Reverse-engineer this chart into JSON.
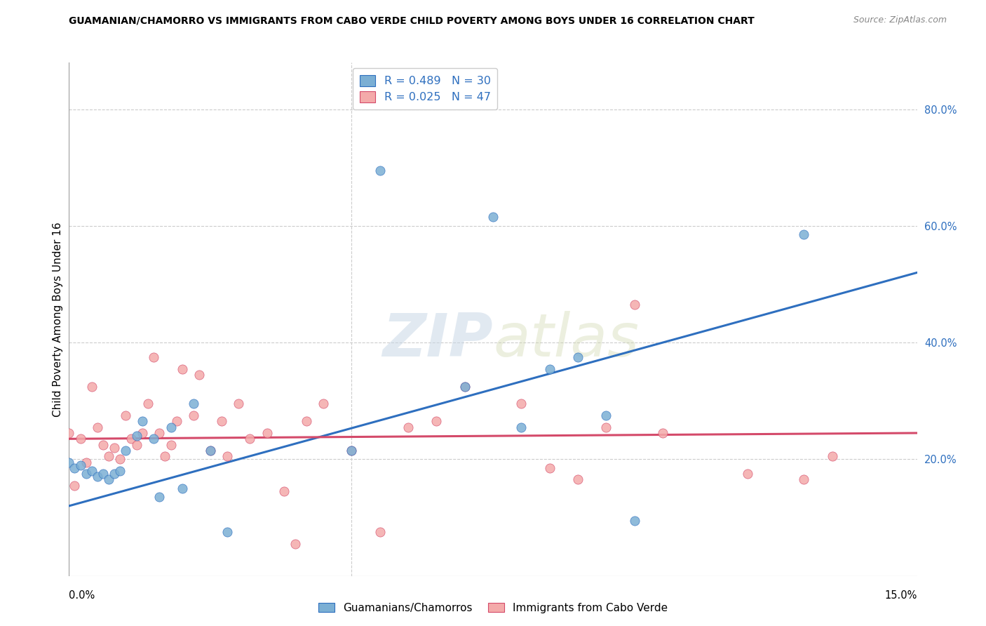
{
  "title": "GUAMANIAN/CHAMORRO VS IMMIGRANTS FROM CABO VERDE CHILD POVERTY AMONG BOYS UNDER 16 CORRELATION CHART",
  "source": "Source: ZipAtlas.com",
  "ylabel": "Child Poverty Among Boys Under 16",
  "xlim": [
    0.0,
    0.15
  ],
  "ylim": [
    0.0,
    0.88
  ],
  "ytick_positions": [
    0.2,
    0.4,
    0.6,
    0.8
  ],
  "xtick_positions": [
    0.0,
    0.15
  ],
  "blue_color": "#7BAFD4",
  "pink_color": "#F4AAAA",
  "blue_line_color": "#2E6FBF",
  "pink_line_color": "#D44A6A",
  "watermark_color": "#C8D8E8",
  "blue_scatter_x": [
    0.0,
    0.001,
    0.002,
    0.003,
    0.004,
    0.005,
    0.006,
    0.007,
    0.008,
    0.009,
    0.01,
    0.012,
    0.013,
    0.015,
    0.016,
    0.018,
    0.02,
    0.022,
    0.025,
    0.028,
    0.05,
    0.055,
    0.07,
    0.075,
    0.08,
    0.085,
    0.09,
    0.095,
    0.1,
    0.13
  ],
  "blue_scatter_y": [
    0.195,
    0.185,
    0.19,
    0.175,
    0.18,
    0.17,
    0.175,
    0.165,
    0.175,
    0.18,
    0.215,
    0.24,
    0.265,
    0.235,
    0.135,
    0.255,
    0.15,
    0.295,
    0.215,
    0.075,
    0.215,
    0.695,
    0.325,
    0.615,
    0.255,
    0.355,
    0.375,
    0.275,
    0.095,
    0.585
  ],
  "pink_scatter_x": [
    0.0,
    0.001,
    0.002,
    0.003,
    0.004,
    0.005,
    0.006,
    0.007,
    0.008,
    0.009,
    0.01,
    0.011,
    0.012,
    0.013,
    0.014,
    0.015,
    0.016,
    0.017,
    0.018,
    0.019,
    0.02,
    0.022,
    0.023,
    0.025,
    0.027,
    0.028,
    0.03,
    0.032,
    0.035,
    0.038,
    0.04,
    0.042,
    0.045,
    0.05,
    0.055,
    0.06,
    0.065,
    0.07,
    0.08,
    0.085,
    0.09,
    0.095,
    0.1,
    0.105,
    0.12,
    0.13,
    0.135
  ],
  "pink_scatter_y": [
    0.245,
    0.155,
    0.235,
    0.195,
    0.325,
    0.255,
    0.225,
    0.205,
    0.22,
    0.2,
    0.275,
    0.235,
    0.225,
    0.245,
    0.295,
    0.375,
    0.245,
    0.205,
    0.225,
    0.265,
    0.355,
    0.275,
    0.345,
    0.215,
    0.265,
    0.205,
    0.295,
    0.235,
    0.245,
    0.145,
    0.055,
    0.265,
    0.295,
    0.215,
    0.075,
    0.255,
    0.265,
    0.325,
    0.295,
    0.185,
    0.165,
    0.255,
    0.465,
    0.245,
    0.175,
    0.165,
    0.205
  ],
  "blue_line_x": [
    0.0,
    0.15
  ],
  "blue_line_y": [
    0.12,
    0.52
  ],
  "pink_line_x": [
    0.0,
    0.15
  ],
  "pink_line_y": [
    0.235,
    0.245
  ],
  "vline_x": 0.05,
  "legend1": "Guamanians/Chamorros",
  "legend2": "Immigrants from Cabo Verde"
}
